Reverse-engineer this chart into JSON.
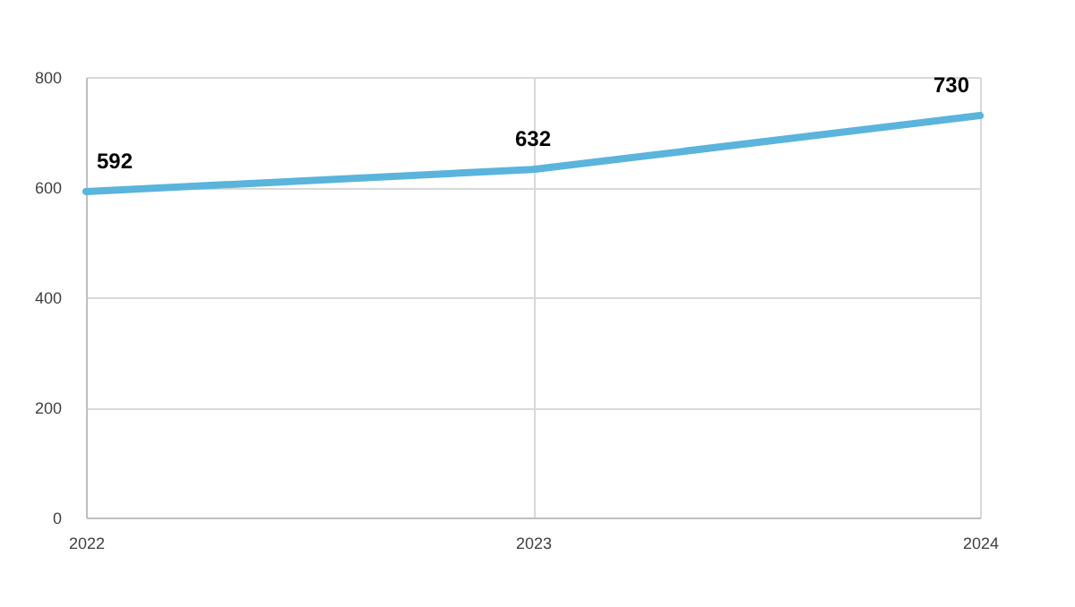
{
  "chart_data": {
    "type": "line",
    "categories": [
      "2022",
      "2023",
      "2024"
    ],
    "series": [
      {
        "color": "#5ab4dc",
        "values": [
          592,
          632,
          730
        ]
      }
    ],
    "ylim": [
      0,
      800
    ],
    "yticks": [
      0,
      200,
      400,
      600,
      800
    ],
    "grid": true,
    "data_labels": true,
    "marker": "none",
    "line_style": "solid"
  }
}
